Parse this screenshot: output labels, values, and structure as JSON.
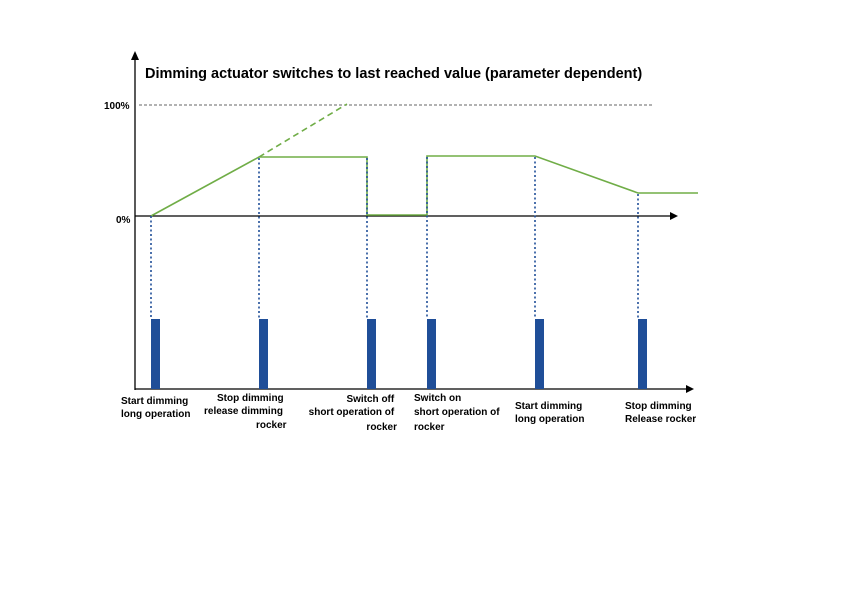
{
  "title": "Dimming actuator switches to last reached value (parameter dependent)",
  "y_ticks": {
    "top": "100%",
    "zero": "0%"
  },
  "colors": {
    "signal_line": "#70ad47",
    "rocker_bar": "#1f4e98",
    "dotted_line": "#1f4e98",
    "axis": "#000000"
  },
  "events": [
    {
      "label_lines": [
        "Start dimming",
        "long operation"
      ],
      "align": "start"
    },
    {
      "label_lines": [
        "Stop dimming",
        "release dimming",
        "rocker"
      ],
      "align": "start-indent"
    },
    {
      "label_lines": [
        "Switch off",
        "short operation of",
        "rocker"
      ],
      "align": "end"
    },
    {
      "label_lines": [
        "Switch on",
        "short operation of",
        "rocker"
      ],
      "align": "start"
    },
    {
      "label_lines": [
        "Start dimming",
        "long operation"
      ],
      "align": "start"
    },
    {
      "label_lines": [
        "Stop dimming",
        "Release rocker"
      ],
      "align": "start"
    }
  ]
}
